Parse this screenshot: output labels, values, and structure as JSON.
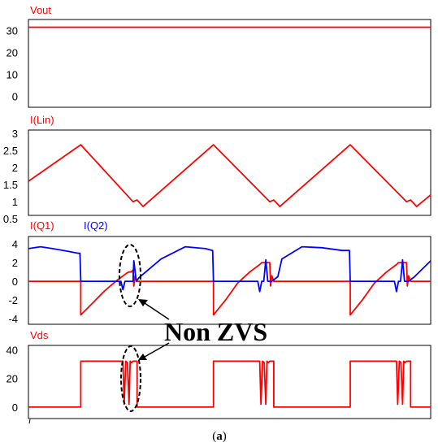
{
  "chart_data": [
    {
      "type": "line",
      "title": "Vout",
      "ylim": [
        -5,
        35
      ],
      "yticks": [
        "30",
        "20",
        "10",
        "0"
      ],
      "ytick_values": [
        30,
        20,
        10,
        0
      ],
      "grid": false,
      "series": [
        {
          "name": "Vout",
          "color": "#ff0000",
          "x": [
            0,
            10
          ],
          "y": [
            31.5,
            31.5
          ]
        }
      ]
    },
    {
      "type": "line",
      "title": "I(Lin)",
      "ylim": [
        0.6,
        3.1
      ],
      "yticks": [
        "3",
        "2.5",
        "2",
        "1.5",
        "1",
        "0.5"
      ],
      "ytick_values": [
        3,
        2.5,
        2,
        1.5,
        1,
        0.5
      ],
      "grid": false,
      "series": [
        {
          "name": "I(Lin)",
          "color": "#ff0000",
          "x": [
            0,
            1.3,
            2.6,
            2.7,
            2.78,
            2.85,
            4.6,
            6.0,
            6.1,
            6.18,
            6.25,
            8.0,
            9.4,
            9.5,
            9.58,
            9.65,
            10
          ],
          "y": [
            1.6,
            2.67,
            1.0,
            1.05,
            0.95,
            0.86,
            2.67,
            1.0,
            1.05,
            0.95,
            0.86,
            2.67,
            1.0,
            1.05,
            0.95,
            0.86,
            1.2
          ]
        }
      ]
    },
    {
      "type": "line",
      "title": "",
      "ylim": [
        -4.6,
        4.8
      ],
      "yticks": [
        "4",
        "2",
        "0",
        "-2",
        "-4"
      ],
      "ytick_values": [
        4,
        2,
        0,
        -2,
        -4
      ],
      "grid": false,
      "series": [
        {
          "name": "I(Q1)",
          "color": "#ff0000",
          "x": [
            0,
            1.3,
            1.3,
            1.6,
            1.9,
            2.2,
            2.45,
            2.5,
            2.55,
            2.6,
            2.62,
            2.65,
            2.7,
            4.6,
            4.6,
            4.9,
            5.2,
            5.5,
            5.75,
            5.8,
            5.85,
            6.0,
            6.02,
            6.05,
            6.1,
            8.0,
            8.0,
            8.3,
            8.6,
            8.9,
            9.15,
            9.2,
            9.25,
            9.4,
            9.42,
            9.45,
            9.5,
            10
          ],
          "y": [
            0,
            0,
            -3.6,
            -2.3,
            -1.0,
            0.1,
            0.9,
            1.0,
            1.0,
            1.2,
            -0.5,
            0.6,
            0,
            0,
            -3.6,
            -2.0,
            -0.2,
            1.0,
            1.8,
            2.0,
            2.0,
            2.0,
            -0.5,
            0.6,
            0,
            0,
            -3.6,
            -2.0,
            -0.2,
            1.0,
            1.8,
            2.0,
            2.0,
            2.0,
            -0.5,
            0.6,
            0,
            0
          ]
        },
        {
          "name": "I(Q2)",
          "color": "#0000ff",
          "x": [
            0,
            0.3,
            0.6,
            1.0,
            1.25,
            1.28,
            1.3,
            1.3,
            2.3,
            2.35,
            2.4,
            2.45,
            2.6,
            2.62,
            2.68,
            2.75,
            3.3,
            3.9,
            4.4,
            4.58,
            4.6,
            4.6,
            5.7,
            5.75,
            5.8,
            5.85,
            5.9,
            5.95,
            6.05,
            6.2,
            6.3,
            6.8,
            7.3,
            7.8,
            7.98,
            8.0,
            8.0,
            9.1,
            9.15,
            9.2,
            9.25,
            9.3,
            9.35,
            9.45,
            9.6,
            10
          ],
          "y": [
            3.5,
            3.7,
            3.5,
            3.2,
            3.0,
            3.0,
            0,
            0,
            0,
            -0.9,
            0,
            0,
            0,
            2.2,
            0,
            0.4,
            2.4,
            3.7,
            3.5,
            3.3,
            0,
            0,
            0,
            -1.1,
            0,
            0,
            2.3,
            0,
            0,
            0.5,
            2.4,
            3.7,
            3.6,
            3.3,
            3.3,
            0,
            0,
            0,
            -1.1,
            0,
            0,
            2.3,
            0,
            0,
            0.5,
            2.2
          ]
        }
      ]
    },
    {
      "type": "line",
      "title": "Vds",
      "ylim": [
        -8,
        43
      ],
      "yticks": [
        "40",
        "20",
        "0"
      ],
      "ytick_values": [
        40,
        20,
        0
      ],
      "grid": false,
      "series": [
        {
          "name": "Vds",
          "color": "#ff0000",
          "x": [
            0,
            1.3,
            1.3,
            2.35,
            2.38,
            2.42,
            2.46,
            2.5,
            2.53,
            2.56,
            2.6,
            2.65,
            2.7,
            2.7,
            4.6,
            4.6,
            5.75,
            5.78,
            5.82,
            5.86,
            5.9,
            5.93,
            5.96,
            6.0,
            6.05,
            6.1,
            6.1,
            8.0,
            8.0,
            9.15,
            9.18,
            9.22,
            9.26,
            9.3,
            9.33,
            9.36,
            9.4,
            9.45,
            9.5,
            9.5,
            10
          ],
          "y": [
            0,
            0,
            32,
            32,
            2,
            32,
            31,
            2,
            32,
            31,
            32,
            32,
            32,
            0,
            0,
            32,
            32,
            2,
            32,
            31,
            2,
            32,
            31,
            32,
            32,
            32,
            0,
            0,
            32,
            32,
            2,
            32,
            31,
            2,
            32,
            31,
            32,
            32,
            32,
            0,
            0
          ]
        }
      ]
    }
  ],
  "labels": {
    "trace_q1": "I(Q1)",
    "trace_q2": "I(Q2)",
    "annotation": "Non ZVS",
    "caption_open": "(",
    "caption_letter": "a",
    "caption_close": ")"
  },
  "colors": {
    "trace_red": "#ff0000",
    "trace_blue": "#0000ff",
    "label_red": "#ff0000",
    "label_blue": "#0000ff"
  }
}
